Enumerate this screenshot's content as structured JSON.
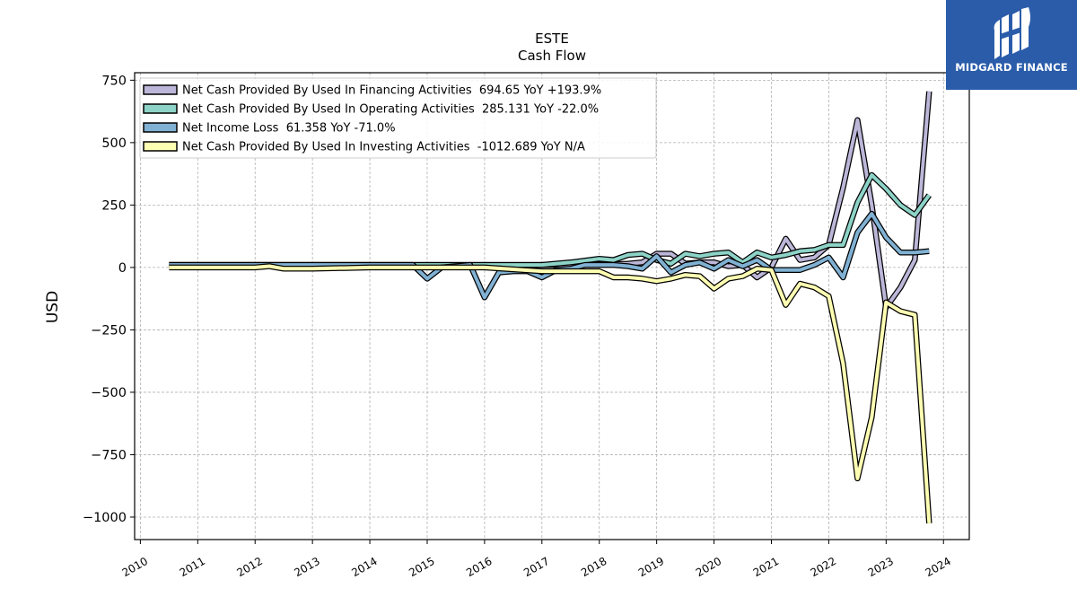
{
  "brand": {
    "name": "MIDGARD FINANCE",
    "logo_icon": "midgard-logo-icon",
    "background": "#2a5caa"
  },
  "chart_data": {
    "type": "line",
    "title": "ESTE",
    "subtitle": "Cash Flow",
    "xlabel": "",
    "ylabel": "USD",
    "xlim": [
      2009.9,
      2024.45
    ],
    "ylim": [
      -1090,
      780
    ],
    "grid": true,
    "legend_position": "upper-left",
    "x_ticks": [
      2010,
      2011,
      2012,
      2013,
      2014,
      2015,
      2016,
      2017,
      2018,
      2019,
      2020,
      2021,
      2022,
      2023,
      2024
    ],
    "y_ticks": [
      750,
      500,
      250,
      0,
      -250,
      -500,
      -750,
      -1000
    ],
    "y_tick_labels": [
      "750",
      "500",
      "250",
      "0",
      "−250",
      "−500",
      "−750",
      "−1000"
    ],
    "series": [
      {
        "name": "Net Cash Provided By Used In Financing Activities",
        "legend": "Net Cash Provided By Used In Financing Activities  694.65 YoY +193.9%",
        "color": "#bcb6d8",
        "points": [
          [
            2010.5,
            10
          ],
          [
            2011,
            10
          ],
          [
            2012,
            10
          ],
          [
            2013,
            10
          ],
          [
            2014,
            10
          ],
          [
            2015,
            10
          ],
          [
            2016,
            10
          ],
          [
            2017,
            10
          ],
          [
            2017.5,
            10
          ],
          [
            2018,
            12
          ],
          [
            2018.5,
            15
          ],
          [
            2018.75,
            20
          ],
          [
            2019,
            55
          ],
          [
            2019.25,
            55
          ],
          [
            2019.5,
            15
          ],
          [
            2019.75,
            20
          ],
          [
            2020,
            20
          ],
          [
            2020.25,
            5
          ],
          [
            2020.5,
            10
          ],
          [
            2020.75,
            -40
          ],
          [
            2021,
            0
          ],
          [
            2021.25,
            115
          ],
          [
            2021.5,
            30
          ],
          [
            2021.75,
            40
          ],
          [
            2022,
            90
          ],
          [
            2022.25,
            320
          ],
          [
            2022.5,
            590
          ],
          [
            2022.75,
            250
          ],
          [
            2023,
            -160
          ],
          [
            2023.25,
            -80
          ],
          [
            2023.5,
            30
          ],
          [
            2023.75,
            705
          ]
        ]
      },
      {
        "name": "Net Cash Provided By Used In Operating Activities",
        "legend": "Net Cash Provided By Used In Operating Activities  285.131 YoY -22.0%",
        "color": "#8dd3c7",
        "points": [
          [
            2010.5,
            10
          ],
          [
            2011,
            10
          ],
          [
            2012,
            10
          ],
          [
            2013,
            10
          ],
          [
            2014,
            10
          ],
          [
            2015,
            10
          ],
          [
            2016,
            10
          ],
          [
            2017,
            10
          ],
          [
            2017.5,
            20
          ],
          [
            2018,
            35
          ],
          [
            2018.25,
            30
          ],
          [
            2018.5,
            50
          ],
          [
            2018.75,
            55
          ],
          [
            2019,
            30
          ],
          [
            2019.25,
            15
          ],
          [
            2019.5,
            55
          ],
          [
            2019.75,
            45
          ],
          [
            2020,
            55
          ],
          [
            2020.25,
            60
          ],
          [
            2020.5,
            20
          ],
          [
            2020.75,
            60
          ],
          [
            2021,
            40
          ],
          [
            2021.25,
            50
          ],
          [
            2021.5,
            65
          ],
          [
            2021.75,
            70
          ],
          [
            2022,
            90
          ],
          [
            2022.25,
            90
          ],
          [
            2022.5,
            260
          ],
          [
            2022.75,
            370
          ],
          [
            2023,
            315
          ],
          [
            2023.25,
            250
          ],
          [
            2023.5,
            210
          ],
          [
            2023.75,
            290
          ]
        ]
      },
      {
        "name": "Net Income Loss",
        "legend": "Net Income Loss  61.358 YoY -71.0%",
        "color": "#80b1d3",
        "points": [
          [
            2010.5,
            10
          ],
          [
            2011,
            10
          ],
          [
            2012,
            10
          ],
          [
            2013,
            10
          ],
          [
            2014,
            10
          ],
          [
            2014.75,
            10
          ],
          [
            2015,
            -45
          ],
          [
            2015.25,
            0
          ],
          [
            2015.75,
            10
          ],
          [
            2016,
            -120
          ],
          [
            2016.25,
            -20
          ],
          [
            2016.5,
            -15
          ],
          [
            2016.75,
            -15
          ],
          [
            2017,
            -40
          ],
          [
            2017.25,
            -10
          ],
          [
            2017.5,
            -5
          ],
          [
            2017.75,
            10
          ],
          [
            2018,
            10
          ],
          [
            2018.25,
            10
          ],
          [
            2018.5,
            5
          ],
          [
            2018.75,
            -5
          ],
          [
            2019,
            45
          ],
          [
            2019.25,
            -20
          ],
          [
            2019.5,
            10
          ],
          [
            2019.75,
            20
          ],
          [
            2020,
            -5
          ],
          [
            2020.25,
            30
          ],
          [
            2020.5,
            5
          ],
          [
            2020.75,
            30
          ],
          [
            2021,
            -10
          ],
          [
            2021.25,
            -10
          ],
          [
            2021.5,
            -10
          ],
          [
            2021.75,
            10
          ],
          [
            2022,
            40
          ],
          [
            2022.25,
            -40
          ],
          [
            2022.5,
            140
          ],
          [
            2022.75,
            215
          ],
          [
            2023,
            120
          ],
          [
            2023.25,
            60
          ],
          [
            2023.5,
            60
          ],
          [
            2023.75,
            65
          ]
        ]
      },
      {
        "name": "Net Cash Provided By Used In Investing Activities",
        "legend": "Net Cash Provided By Used In Investing Activities  -1012.689 YoY N/A",
        "color": "#ffffb3",
        "points": [
          [
            2010.5,
            0
          ],
          [
            2011,
            0
          ],
          [
            2012,
            0
          ],
          [
            2012.25,
            5
          ],
          [
            2012.5,
            -5
          ],
          [
            2013,
            -5
          ],
          [
            2014,
            0
          ],
          [
            2015,
            0
          ],
          [
            2016,
            0
          ],
          [
            2017,
            -15
          ],
          [
            2017.5,
            -15
          ],
          [
            2018,
            -15
          ],
          [
            2018.25,
            -40
          ],
          [
            2018.5,
            -40
          ],
          [
            2018.75,
            -45
          ],
          [
            2019,
            -55
          ],
          [
            2019.25,
            -45
          ],
          [
            2019.5,
            -30
          ],
          [
            2019.75,
            -35
          ],
          [
            2020,
            -85
          ],
          [
            2020.25,
            -45
          ],
          [
            2020.5,
            -35
          ],
          [
            2020.75,
            -5
          ],
          [
            2021,
            -10
          ],
          [
            2021.25,
            -150
          ],
          [
            2021.5,
            -65
          ],
          [
            2021.75,
            -80
          ],
          [
            2022,
            -115
          ],
          [
            2022.25,
            -385
          ],
          [
            2022.5,
            -845
          ],
          [
            2022.75,
            -600
          ],
          [
            2023,
            -140
          ],
          [
            2023.25,
            -175
          ],
          [
            2023.5,
            -190
          ],
          [
            2023.75,
            -1025
          ]
        ]
      }
    ]
  }
}
